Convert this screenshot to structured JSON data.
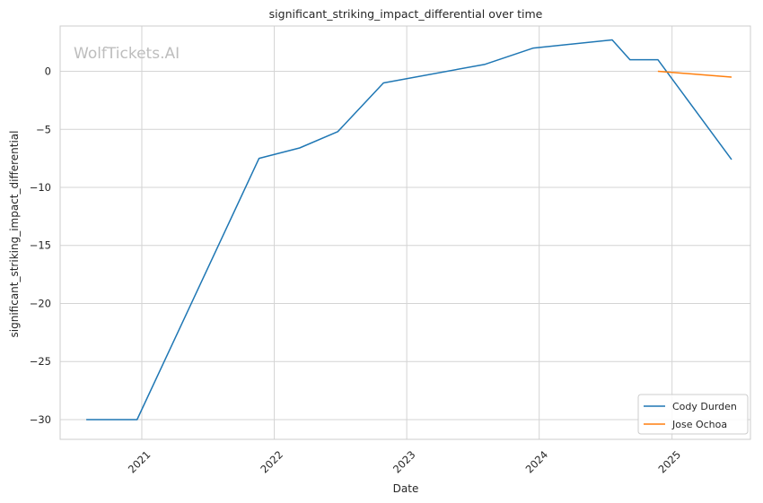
{
  "chart_data": {
    "type": "line",
    "title": "significant_striking_impact_differential over time",
    "xlabel": "Date",
    "ylabel": "significant_striking_impact_differential",
    "watermark": "WolfTickets.AI",
    "x_type": "date",
    "xlim": [
      "2020-05-21",
      "2025-08-05"
    ],
    "ylim": [
      -31.7,
      3.9
    ],
    "x_ticks": [
      "2021",
      "2022",
      "2023",
      "2024",
      "2025"
    ],
    "y_ticks": [
      0,
      -5,
      -10,
      -15,
      -20,
      -25,
      -30
    ],
    "grid": true,
    "legend_position": "bottom-right",
    "series": [
      {
        "name": "Cody Durden",
        "color": "#1f77b4",
        "x": [
          "2020-08-01",
          "2020-12-19",
          "2021-11-20",
          "2022-03-12",
          "2022-06-25",
          "2022-10-29",
          "2023-08-05",
          "2023-12-16",
          "2024-07-20",
          "2024-09-07",
          "2024-11-23",
          "2025-06-14"
        ],
        "y": [
          -30.0,
          -30.0,
          -7.5,
          -6.6,
          -5.2,
          -1.0,
          0.6,
          2.0,
          2.7,
          1.0,
          1.0,
          -7.6
        ]
      },
      {
        "name": "Jose Ochoa",
        "color": "#ff7f0e",
        "x": [
          "2024-11-23",
          "2025-06-14"
        ],
        "y": [
          0.0,
          -0.5
        ]
      }
    ]
  }
}
